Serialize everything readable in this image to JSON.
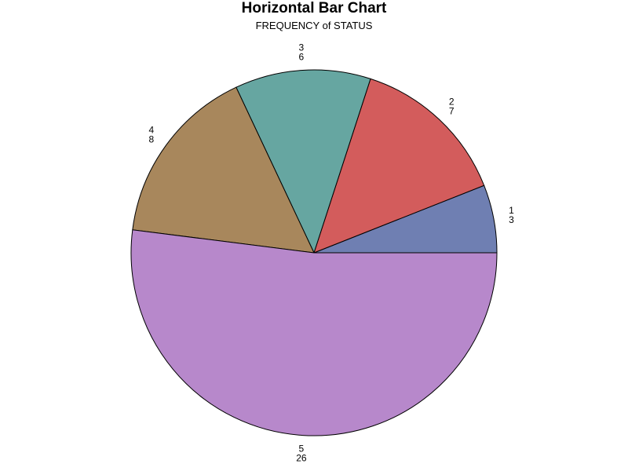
{
  "chart_data": {
    "type": "pie",
    "title": "Horizontal Bar Chart",
    "subtitle": "FREQUENCY of STATUS",
    "categories": [
      "1",
      "2",
      "3",
      "4",
      "5"
    ],
    "values": [
      3,
      7,
      6,
      8,
      26
    ],
    "colors": [
      "#6f7fb2",
      "#d35c5c",
      "#66a6a1",
      "#a8875c",
      "#b788cb"
    ],
    "start_angle_deg": 0,
    "direction": "counterclockwise",
    "outline_color": "#000000",
    "legend": "none"
  }
}
